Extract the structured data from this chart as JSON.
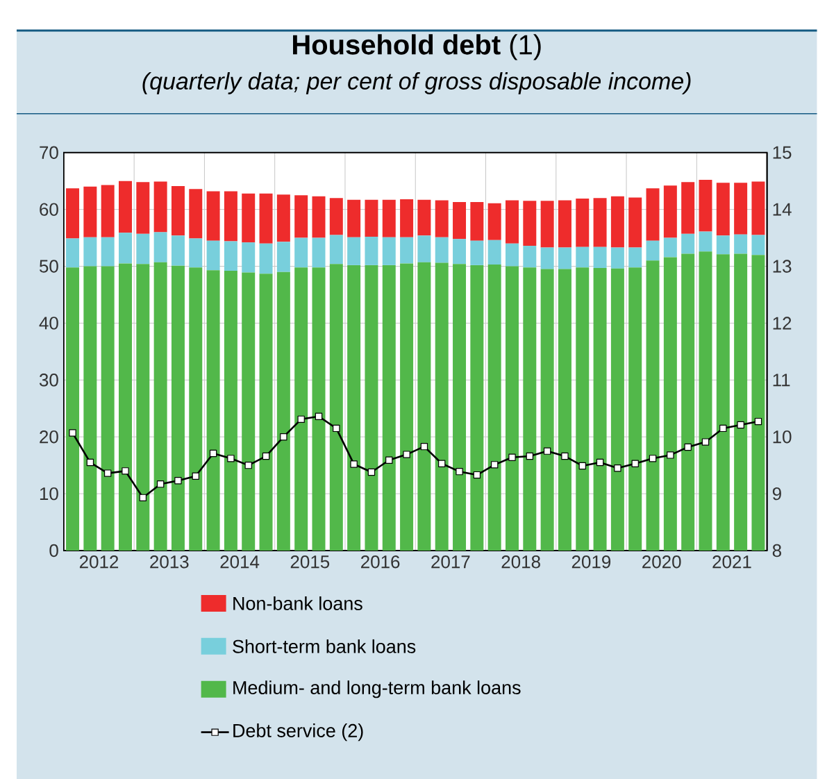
{
  "chart_data": {
    "type": "bar",
    "title": "**Household debt** (1)",
    "subtitle": "(quarterly data; per cent of gross disposable income)",
    "x": [
      2012.125,
      2012.375,
      2012.625,
      2012.875,
      2013.125,
      2013.375,
      2013.625,
      2013.875,
      2014.125,
      2014.375,
      2014.625,
      2014.875,
      2015.125,
      2015.375,
      2015.625,
      2015.875,
      2016.125,
      2016.375,
      2016.625,
      2016.875,
      2017.125,
      2017.375,
      2017.625,
      2017.875,
      2018.125,
      2018.375,
      2018.625,
      2018.875,
      2019.125,
      2019.375,
      2019.625,
      2019.875,
      2020.125,
      2020.375,
      2020.625,
      2020.875,
      2021.125,
      2021.375,
      2021.625,
      2021.875
    ],
    "stacked": true,
    "series": [
      {
        "name": "Medium- and long-term bank loans",
        "color": "#52b84a",
        "values": [
          49.8,
          50.0,
          50.0,
          50.5,
          50.4,
          50.7,
          50.1,
          49.8,
          49.3,
          49.2,
          48.9,
          48.7,
          49.0,
          49.8,
          49.8,
          50.4,
          50.2,
          50.2,
          50.2,
          50.5,
          50.7,
          50.6,
          50.4,
          50.2,
          50.3,
          50.0,
          49.8,
          49.5,
          49.5,
          49.8,
          49.7,
          49.6,
          49.8,
          51.0,
          51.6,
          52.2,
          52.6,
          52.1,
          52.2,
          52.0
        ]
      },
      {
        "name": "Short-term bank loans",
        "color": "#78cfdc",
        "values": [
          5.1,
          5.1,
          5.1,
          5.4,
          5.3,
          5.3,
          5.3,
          5.1,
          5.2,
          5.2,
          5.3,
          5.3,
          5.3,
          5.2,
          5.2,
          5.1,
          4.9,
          5.0,
          4.9,
          4.6,
          4.7,
          4.5,
          4.4,
          4.3,
          4.3,
          4.0,
          3.8,
          3.8,
          3.8,
          3.6,
          3.7,
          3.7,
          3.5,
          3.5,
          3.4,
          3.5,
          3.5,
          3.3,
          3.4,
          3.5
        ]
      },
      {
        "name": "Non-bank loans",
        "color": "#ee2c2c",
        "values": [
          8.8,
          8.9,
          9.2,
          9.1,
          9.1,
          8.9,
          8.7,
          8.7,
          8.7,
          8.8,
          8.6,
          8.8,
          8.3,
          7.5,
          7.3,
          6.5,
          6.6,
          6.5,
          6.6,
          6.7,
          6.3,
          6.5,
          6.5,
          6.8,
          6.5,
          7.6,
          7.9,
          8.2,
          8.3,
          8.5,
          8.6,
          9.0,
          8.8,
          9.2,
          9.2,
          9.1,
          9.1,
          9.3,
          9.1,
          9.4
        ]
      },
      {
        "name": "Debt service (2)",
        "type": "line",
        "axis": "y2",
        "color": "#000000",
        "values": [
          10.07,
          9.55,
          9.36,
          9.4,
          8.93,
          9.17,
          9.23,
          9.31,
          9.71,
          9.62,
          9.5,
          9.66,
          10.0,
          10.31,
          10.36,
          10.15,
          9.52,
          9.38,
          9.59,
          9.69,
          9.83,
          9.53,
          9.39,
          9.33,
          9.51,
          9.64,
          9.66,
          9.75,
          9.66,
          9.49,
          9.55,
          9.45,
          9.53,
          9.62,
          9.68,
          9.82,
          9.91,
          10.15,
          10.21,
          10.27
        ]
      }
    ],
    "xlim": [
      2012,
      2022
    ],
    "xticks": [
      {
        "value": 2012.5,
        "label": "2012"
      },
      {
        "value": 2013,
        "label": null
      },
      {
        "value": 2013.5,
        "label": "2013"
      },
      {
        "value": 2014,
        "label": null
      },
      {
        "value": 2014.5,
        "label": "2014"
      },
      {
        "value": 2015,
        "label": null
      },
      {
        "value": 2015.5,
        "label": "2015"
      },
      {
        "value": 2016,
        "label": null
      },
      {
        "value": 2016.5,
        "label": "2016"
      },
      {
        "value": 2017,
        "label": null
      },
      {
        "value": 2017.5,
        "label": "2017"
      },
      {
        "value": 2018,
        "label": null
      },
      {
        "value": 2018.5,
        "label": "2018"
      },
      {
        "value": 2019,
        "label": null
      },
      {
        "value": 2019.5,
        "label": "2019"
      },
      {
        "value": 2020,
        "label": null
      },
      {
        "value": 2020.5,
        "label": "2020"
      },
      {
        "value": 2021,
        "label": null
      },
      {
        "value": 2021.5,
        "label": "2021"
      }
    ],
    "ylim": [
      0,
      70
    ],
    "yticks": [
      0,
      10,
      20,
      30,
      40,
      50,
      60,
      70
    ],
    "y2lim": [
      8,
      15
    ],
    "y2ticks": [
      8,
      9,
      10,
      11,
      12,
      13,
      14,
      15
    ],
    "grid": true,
    "legend": "bottom",
    "marker": "square"
  }
}
